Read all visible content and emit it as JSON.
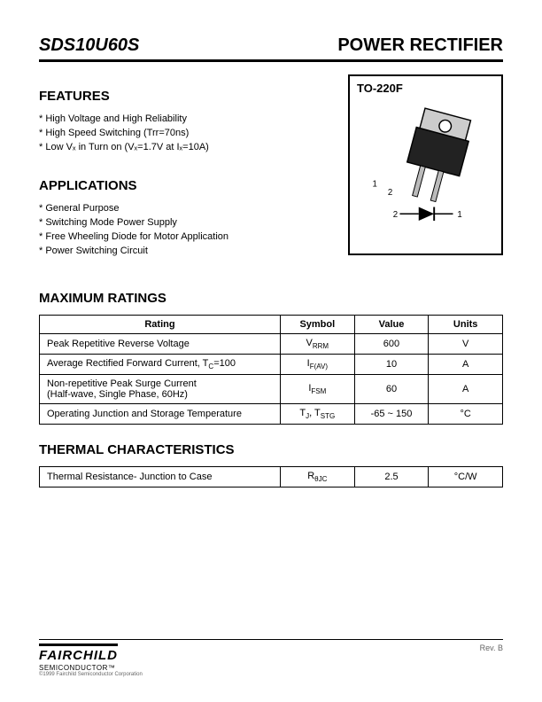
{
  "header": {
    "part_number": "SDS10U60S",
    "doc_title": "POWER RECTIFIER"
  },
  "features": {
    "heading": "FEATURES",
    "items": [
      "High Voltage and High Reliability",
      "High Speed Switching (Trr=70ns)",
      "Low Vₓ in Turn on (Vₓ=1.7V at  Iₓ=10A)"
    ]
  },
  "applications": {
    "heading": "APPLICATIONS",
    "items": [
      "General Purpose",
      "Switching Mode Power Supply",
      "Free Wheeling Diode for Motor Application",
      "Power Switching Circuit"
    ]
  },
  "package": {
    "label": "TO-220F",
    "pin1": "1",
    "pin2": "2"
  },
  "max_ratings": {
    "heading": "MAXIMUM RATINGS",
    "columns": [
      "Rating",
      "Symbol",
      "Value",
      "Units"
    ],
    "col_widths": [
      "52%",
      "16%",
      "16%",
      "16%"
    ],
    "rows": [
      {
        "rating": "Peak Repetitive Reverse Voltage",
        "symbol_html": "V<span class='sub'>RRM</span>",
        "value": "600",
        "units": "V"
      },
      {
        "rating": "Average Rectified Forward Current, T<span class='sub'>C</span>=100",
        "symbol_html": "I<span class='sub'>F(AV)</span>",
        "value": "10",
        "units": "A"
      },
      {
        "rating": "Non-repetitive Peak Surge Current<br>(Half-wave, Single Phase, 60Hz)",
        "symbol_html": "I<span class='sub'>FSM</span>",
        "value": "60",
        "units": "A"
      },
      {
        "rating": "Operating Junction and Storage Temperature",
        "symbol_html": "T<span class='sub'>J</span>, T<span class='sub'>STG</span>",
        "value": "-65 ~ 150",
        "units": "°C"
      }
    ]
  },
  "thermal": {
    "heading": "THERMAL CHARACTERISTICS",
    "rows": [
      {
        "rating": "Thermal Resistance- Junction to Case",
        "symbol_html": "R<span class='sub'>θJC</span>",
        "value": "2.5",
        "units": "°C/W"
      }
    ]
  },
  "footer": {
    "logo_main": "FAIRCHILD",
    "logo_sub": "SEMICONDUCTOR™",
    "copyright": "©1999 Fairchild Semiconductor Corporation",
    "rev": "Rev. B"
  },
  "colors": {
    "text": "#000000",
    "bg": "#ffffff",
    "border": "#000000",
    "muted": "#666666"
  }
}
